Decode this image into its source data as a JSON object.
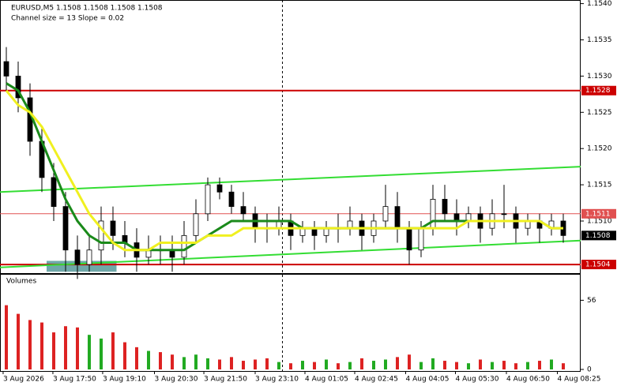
{
  "chart_data": {
    "type": "candlestick",
    "title": "EURUSD,M5  1.1508 1.1508 1.1508 1.1508",
    "subtitle": "Channel size = 13 Slope = 0.02",
    "volume_title": "Volumes",
    "open": [
      1.1532,
      1.153,
      1.1527,
      1.1521,
      1.1516,
      1.1512,
      1.1506,
      1.1504,
      1.1506,
      1.151,
      1.1508,
      1.1507,
      1.1505,
      1.1506,
      1.1506,
      1.1505,
      1.1508,
      1.1511,
      1.1515,
      1.1514,
      1.1512,
      1.1511,
      1.1509,
      1.1509,
      1.151,
      1.1508,
      1.1509,
      1.1508,
      1.1509,
      1.1509,
      1.151,
      1.1508,
      1.151,
      1.1512,
      1.1509,
      1.1506,
      1.1509,
      1.1513,
      1.1511,
      1.151,
      1.1511,
      1.1509,
      1.1511,
      1.1511,
      1.1509,
      1.151,
      1.1509,
      1.151
    ],
    "high": [
      1.1534,
      1.1532,
      1.1529,
      1.1523,
      1.1518,
      1.1514,
      1.1508,
      1.1508,
      1.1512,
      1.1512,
      1.151,
      1.1509,
      1.1508,
      1.1508,
      1.1508,
      1.151,
      1.1513,
      1.1516,
      1.1516,
      1.1515,
      1.1514,
      1.1512,
      1.1511,
      1.1512,
      1.1511,
      1.151,
      1.151,
      1.151,
      1.1511,
      1.1512,
      1.1511,
      1.1511,
      1.1515,
      1.1514,
      1.151,
      1.151,
      1.1515,
      1.1515,
      1.1513,
      1.1512,
      1.1512,
      1.1513,
      1.1515,
      1.1512,
      1.1511,
      1.1511,
      1.1511,
      1.1511
    ],
    "low": [
      1.1528,
      1.1525,
      1.1519,
      1.1514,
      1.151,
      1.1503,
      1.1502,
      1.1503,
      1.1504,
      1.1506,
      1.1505,
      1.1503,
      1.1504,
      1.1504,
      1.1503,
      1.1504,
      1.1507,
      1.151,
      1.1513,
      1.1511,
      1.151,
      1.1507,
      1.1507,
      1.1508,
      1.1506,
      1.1507,
      1.1506,
      1.1507,
      1.1507,
      1.1508,
      1.1506,
      1.1507,
      1.1509,
      1.1507,
      1.1504,
      1.1505,
      1.1508,
      1.151,
      1.1508,
      1.1509,
      1.1507,
      1.1508,
      1.1509,
      1.1507,
      1.1508,
      1.1507,
      1.1508,
      1.1507
    ],
    "close": [
      1.153,
      1.1527,
      1.1521,
      1.1516,
      1.1512,
      1.1506,
      1.1504,
      1.1506,
      1.151,
      1.1508,
      1.1507,
      1.1505,
      1.1506,
      1.1506,
      1.1505,
      1.1508,
      1.1511,
      1.1515,
      1.1514,
      1.1512,
      1.1511,
      1.1509,
      1.1509,
      1.151,
      1.1508,
      1.1509,
      1.1508,
      1.1509,
      1.1509,
      1.151,
      1.1508,
      1.151,
      1.1512,
      1.1509,
      1.1506,
      1.1509,
      1.1513,
      1.1511,
      1.151,
      1.1511,
      1.1509,
      1.1511,
      1.1511,
      1.1509,
      1.151,
      1.1509,
      1.151,
      1.1508
    ],
    "volume": [
      52,
      45,
      40,
      38,
      30,
      35,
      34,
      28,
      25,
      30,
      22,
      18,
      15,
      14,
      12,
      10,
      12,
      9,
      8,
      10,
      7,
      8,
      9,
      6,
      5,
      7,
      6,
      8,
      5,
      6,
      9,
      7,
      8,
      10,
      12,
      6,
      9,
      7,
      6,
      5,
      8,
      6,
      7,
      5,
      6,
      7,
      8,
      5
    ],
    "series": [
      {
        "color": "#1a8a1a",
        "values": [
          1.1529,
          1.1528,
          1.1525,
          1.1521,
          1.1517,
          1.1513,
          1.151,
          1.1508,
          1.1507,
          1.1507,
          1.1507,
          1.1506,
          1.1506,
          1.1506,
          1.1506,
          1.1506,
          1.1507,
          1.1508,
          1.1509,
          1.151,
          1.151,
          1.151,
          1.151,
          1.151,
          1.151,
          1.1509,
          1.1509,
          1.1509,
          1.1509,
          1.1509,
          1.1509,
          1.1509,
          1.1509,
          1.1509,
          1.1509,
          1.1509,
          1.151,
          1.151,
          1.151,
          1.151,
          1.151,
          1.151,
          1.151,
          1.151,
          1.151,
          1.151,
          1.1509,
          1.1509
        ]
      },
      {
        "color": "#f0f020",
        "values": [
          1.1528,
          1.1526,
          1.1525,
          1.1523,
          1.152,
          1.1517,
          1.1514,
          1.1511,
          1.1509,
          1.1507,
          1.1506,
          1.1506,
          1.1506,
          1.1507,
          1.1507,
          1.1507,
          1.1507,
          1.1508,
          1.1508,
          1.1508,
          1.1509,
          1.1509,
          1.1509,
          1.1509,
          1.1509,
          1.1509,
          1.1509,
          1.1509,
          1.1509,
          1.1509,
          1.1509,
          1.1509,
          1.1509,
          1.1509,
          1.1509,
          1.1509,
          1.1509,
          1.1509,
          1.1509,
          1.151,
          1.151,
          1.151,
          1.151,
          1.151,
          1.151,
          1.151,
          1.1509,
          1.1509
        ]
      }
    ],
    "channel_lines": [
      {
        "start": 1.1514,
        "end": 1.15175
      },
      {
        "start": 1.15036,
        "end": 1.15073
      }
    ],
    "levels": [
      {
        "value": 1.1528,
        "color": "#cc0000"
      },
      {
        "value": 1.1504,
        "color": "#cc0000"
      },
      {
        "value": 1.1511,
        "color": "#e05050"
      }
    ],
    "current_price": 1.1508,
    "zone": {
      "from": 1.1503,
      "to": 1.15045,
      "start": 3.4,
      "end": 9.3
    },
    "separator": 23.3,
    "ylim": [
      1.15027,
      1.15405
    ],
    "yticks": [
      {
        "value": 1.154,
        "label": "1.1540"
      },
      1.1535,
      {
        "value": 1.153,
        "label": "1.1530"
      },
      1.1525,
      {
        "value": 1.152,
        "label": "1.1520"
      },
      1.1515,
      {
        "value": 1.151,
        "label": "1.1510"
      }
    ],
    "volume_ylim": [
      0,
      62
    ],
    "volume_yticks": [
      0,
      56
    ],
    "xticks": [
      {
        "value": -0.27,
        "label": "3 Aug 2026"
      },
      {
        "value": 3.93,
        "label": "3 Aug 17:50"
      },
      {
        "value": 8.13,
        "label": "3 Aug 19:10"
      },
      {
        "value": 12.5,
        "label": "3 Aug 20:30"
      },
      {
        "value": 16.67,
        "label": "3 Aug 21:50"
      },
      {
        "value": 21,
        "label": "3 Aug 23:10"
      },
      {
        "value": 25.2,
        "label": "4 Aug 01:05"
      },
      {
        "value": 29.4,
        "label": "4 Aug 02:45"
      },
      {
        "value": 33.7,
        "label": "4 Aug 04:05"
      },
      {
        "value": 37.9,
        "label": "4 Aug 05:30"
      },
      {
        "value": 42.2,
        "label": "4 Aug 06:50"
      },
      {
        "value": 46.5,
        "label": "4 Aug 08:25"
      }
    ]
  }
}
